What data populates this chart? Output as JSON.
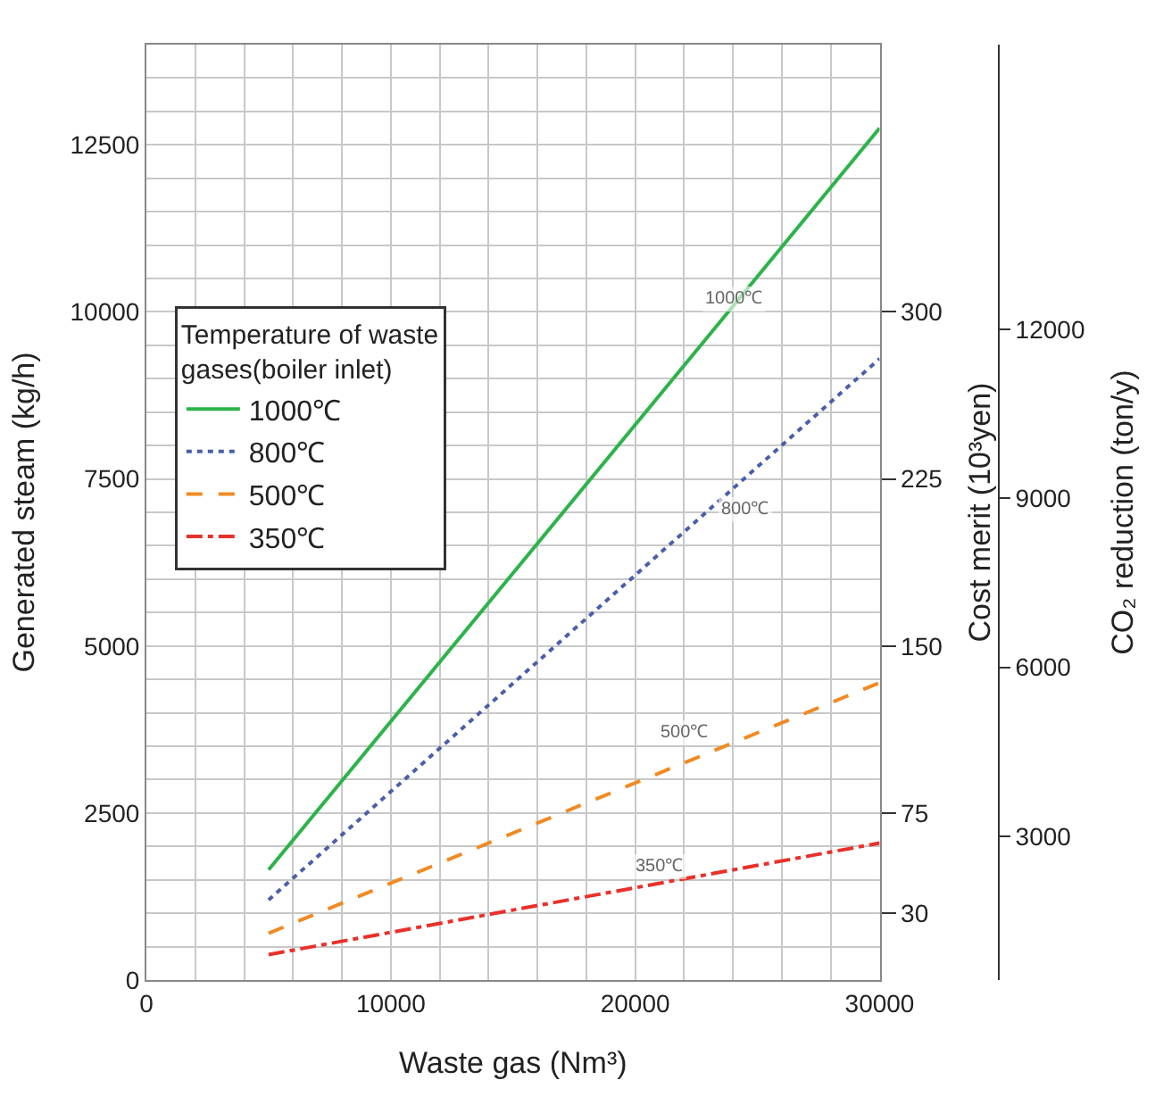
{
  "chart_data": {
    "type": "line",
    "xlabel": "Waste gas (Nm³)",
    "ylabel": "Generated steam (kg/h)",
    "y2label": "Cost merit (10³yen)",
    "y3label": "CO₂ reduction (ton/y)",
    "legend_title": "Temperature of waste gases(boiler inlet)",
    "legend": "top left",
    "grid": true,
    "marker": "none",
    "x": [
      5000,
      30000
    ],
    "series": [
      {
        "name": "1000℃",
        "color": "#2db34a",
        "line_style": "solid",
        "values": [
          1650,
          12750
        ]
      },
      {
        "name": "800℃",
        "color": "#4a5fa8",
        "line_style": "dotted",
        "values": [
          1200,
          9300
        ]
      },
      {
        "name": "500℃",
        "color": "#f08a24",
        "line_style": "dashed",
        "values": [
          700,
          4450
        ]
      },
      {
        "name": "350℃",
        "color": "#e8312a",
        "line_style": "dashdot",
        "values": [
          380,
          2050
        ]
      }
    ],
    "annotations": [
      {
        "text": "1000℃",
        "x": 24000,
        "y": 10200
      },
      {
        "text": "800℃",
        "x": 24500,
        "y": 7050
      },
      {
        "text": "500℃",
        "x": 22000,
        "y": 3700
      },
      {
        "text": "350℃",
        "x": 21000,
        "y": 1700
      }
    ],
    "xlim": [
      0,
      30000
    ],
    "xticks": [
      0,
      {
        "value": 2000,
        "label": null
      },
      {
        "value": 4000,
        "label": null
      },
      {
        "value": 6000,
        "label": null
      },
      {
        "value": 8000,
        "label": null
      },
      10000,
      {
        "value": 12000,
        "label": null
      },
      {
        "value": 14000,
        "label": null
      },
      {
        "value": 16000,
        "label": null
      },
      {
        "value": 18000,
        "label": null
      },
      20000,
      {
        "value": 22000,
        "label": null
      },
      {
        "value": 24000,
        "label": null
      },
      {
        "value": 26000,
        "label": null
      },
      {
        "value": 28000,
        "label": null
      },
      30000
    ],
    "ylim": [
      0,
      14000
    ],
    "yticks": [
      0,
      {
        "value": 500,
        "label": null
      },
      {
        "value": 1000,
        "label": null
      },
      {
        "value": 1500,
        "label": null
      },
      {
        "value": 2000,
        "label": null
      },
      2500,
      {
        "value": 3000,
        "label": null
      },
      {
        "value": 3500,
        "label": null
      },
      {
        "value": 4000,
        "label": null
      },
      {
        "value": 4500,
        "label": null
      },
      5000,
      {
        "value": 5500,
        "label": null
      },
      {
        "value": 6000,
        "label": null
      },
      {
        "value": 6500,
        "label": null
      },
      {
        "value": 7000,
        "label": null
      },
      7500,
      {
        "value": 8000,
        "label": null
      },
      {
        "value": 8500,
        "label": null
      },
      {
        "value": 9000,
        "label": null
      },
      {
        "value": 9500,
        "label": null
      },
      10000,
      {
        "value": 10500,
        "label": null
      },
      {
        "value": 11000,
        "label": null
      },
      {
        "value": 11500,
        "label": null
      },
      {
        "value": 12000,
        "label": null
      },
      12500,
      {
        "value": 13000,
        "label": null
      },
      {
        "value": 13500,
        "label": null
      },
      {
        "value": 14000,
        "label": null
      }
    ],
    "y2lim": [
      0,
      420
    ],
    "y2ticks": [
      30,
      75,
      150,
      225,
      300
    ],
    "y3lim": [
      450,
      17050
    ],
    "y3ticks": [
      3000,
      6000,
      9000,
      12000
    ]
  }
}
